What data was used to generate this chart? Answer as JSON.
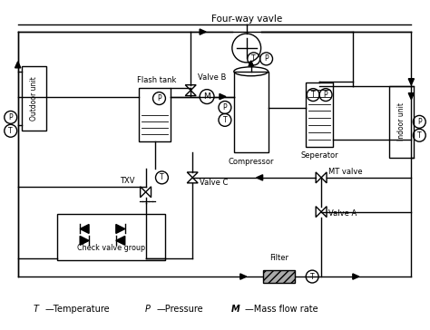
{
  "bg_color": "#ffffff",
  "lc": "#000000",
  "lw": 1.0,
  "labels": {
    "four_way": "Four-way vavle",
    "valve_b": "Valve B",
    "flash_tank": "Flash tank",
    "compressor": "Compressor",
    "separator": "Seperator",
    "txv": "TXV",
    "valve_c": "Valve C",
    "mt_valve": "MT valve",
    "valve_a": "Valve A",
    "check_valve": "Check valve group",
    "filter": "Filter",
    "outdoor_unit": "Outdoor unit",
    "indoor_unit": "Indoor unit"
  },
  "legend": {
    "T": "T",
    "dash1": "—",
    "temp": "Temperature",
    "P": "P",
    "dash2": "—",
    "press": "Pressure",
    "M": "M",
    "dash3": "—",
    "mass": "Mass flow rate"
  }
}
